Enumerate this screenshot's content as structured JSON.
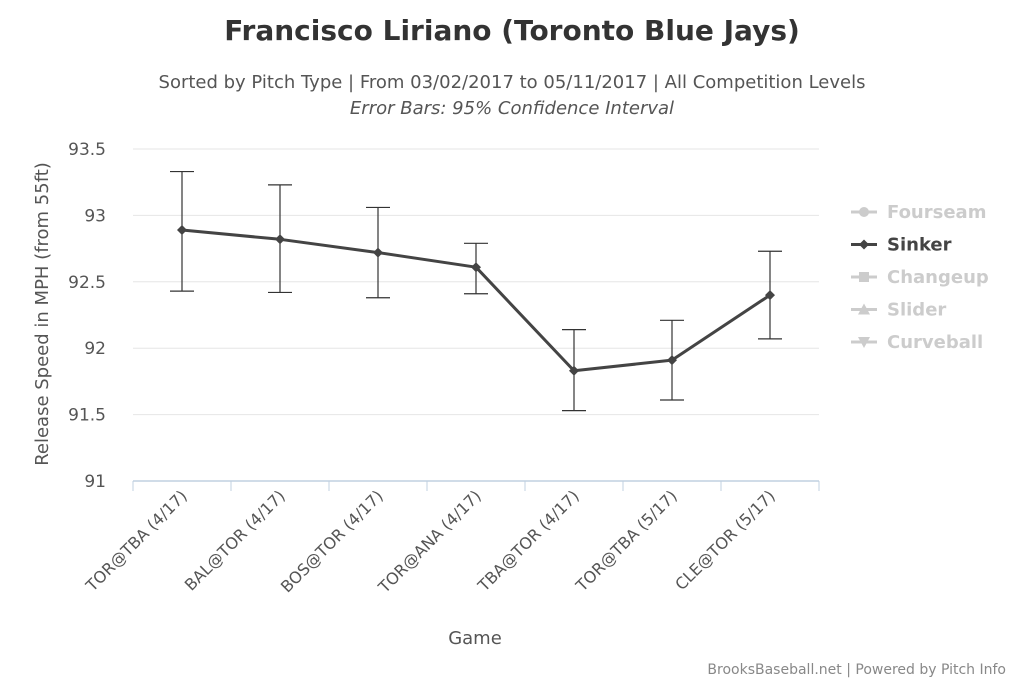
{
  "chart_data": {
    "type": "line",
    "title": "Francisco Liriano (Toronto Blue Jays)",
    "subtitle": "Sorted by Pitch Type | From 03/02/2017 to 05/11/2017 | All Competition Levels",
    "subtitle2": "Error Bars: 95% Confidence Interval",
    "xlabel": "Game",
    "ylabel": "Release Speed in MPH (from 55ft)",
    "ylim": [
      91,
      93.5
    ],
    "yticks": [
      "91",
      "91.5",
      "92",
      "92.5",
      "93",
      "93.5"
    ],
    "ytick_values": [
      91,
      91.5,
      92,
      92.5,
      93,
      93.5
    ],
    "grid": true,
    "legend_placement": "right",
    "categories": [
      "TOR@TBA (4/17)",
      "BAL@TOR (4/17)",
      "BOS@TOR (4/17)",
      "TOR@ANA (4/17)",
      "TBA@TOR (4/17)",
      "TOR@TBA (5/17)",
      "CLE@TOR (5/17)"
    ],
    "series": [
      {
        "name": "Sinker",
        "color": "#444444",
        "values": [
          92.89,
          92.82,
          92.72,
          92.61,
          91.83,
          91.91,
          92.4
        ],
        "error_low": [
          92.43,
          92.42,
          92.38,
          92.41,
          91.53,
          91.61,
          92.07
        ],
        "error_high": [
          93.33,
          93.23,
          93.06,
          92.79,
          92.14,
          92.21,
          92.73
        ]
      }
    ],
    "legend": [
      {
        "name": "Fourseam",
        "symbol": "circle",
        "active": false
      },
      {
        "name": "Sinker",
        "symbol": "diamond",
        "active": true
      },
      {
        "name": "Changeup",
        "symbol": "square",
        "active": false
      },
      {
        "name": "Slider",
        "symbol": "triangle",
        "active": false
      },
      {
        "name": "Curveball",
        "symbol": "triangle-down",
        "active": false
      }
    ],
    "colors": {
      "active": "#444444",
      "inactive": "#cccccc",
      "grid": "#e6e6e6",
      "axis": "#c0d0e0"
    }
  },
  "credits": "BrooksBaseball.net | Powered by Pitch Info"
}
